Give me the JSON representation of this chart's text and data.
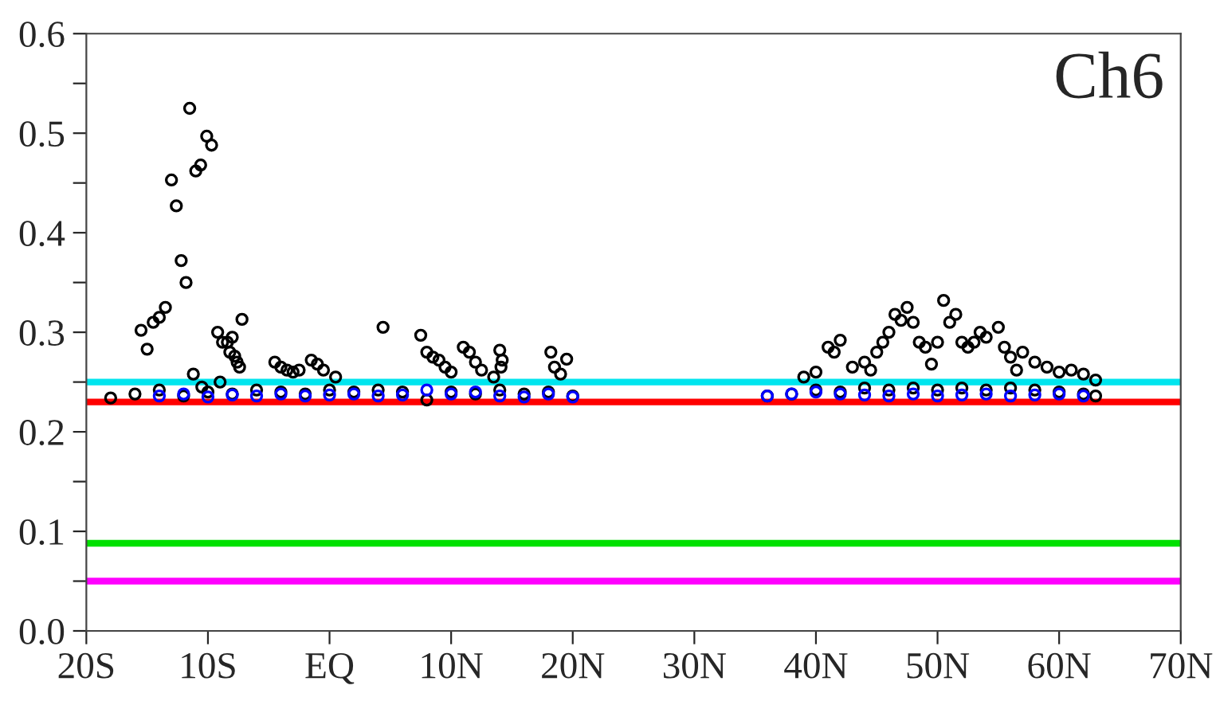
{
  "chart_data": {
    "type": "scatter",
    "marker": "circle",
    "grid": false,
    "legend": false,
    "annotations": [
      "Ch6"
    ],
    "xlim": [
      -20,
      70
    ],
    "xticks": [
      {
        "value": -20,
        "label": "20S"
      },
      {
        "value": -10,
        "label": "10S"
      },
      {
        "value": 0,
        "label": "EQ"
      },
      {
        "value": 10,
        "label": "10N"
      },
      {
        "value": 20,
        "label": "20N"
      },
      {
        "value": 30,
        "label": "30N"
      },
      {
        "value": 40,
        "label": "40N"
      },
      {
        "value": 50,
        "label": "50N"
      },
      {
        "value": 60,
        "label": "60N"
      },
      {
        "value": 70,
        "label": "70N"
      }
    ],
    "ylim": [
      0,
      0.6
    ],
    "yticks": [
      {
        "value": 0,
        "label": "0.0"
      },
      {
        "value": 0.05,
        "label": null
      },
      {
        "value": 0.1,
        "label": "0.1"
      },
      {
        "value": 0.15,
        "label": null
      },
      {
        "value": 0.2,
        "label": "0.2"
      },
      {
        "value": 0.25,
        "label": null
      },
      {
        "value": 0.3,
        "label": "0.3"
      },
      {
        "value": 0.35,
        "label": null
      },
      {
        "value": 0.4,
        "label": "0.4"
      },
      {
        "value": 0.45,
        "label": null
      },
      {
        "value": 0.5,
        "label": "0.5"
      },
      {
        "value": 0.55,
        "label": null
      },
      {
        "value": 0.6,
        "label": "0.6"
      }
    ],
    "ref_lines": [
      {
        "axis": "y",
        "value": 0.25,
        "color": "#00e5ee"
      },
      {
        "axis": "y",
        "value": 0.23,
        "color": "#ff0000"
      },
      {
        "axis": "y",
        "value": 0.088,
        "color": "#00e000"
      },
      {
        "axis": "y",
        "value": 0.05,
        "color": "#ff00ff"
      }
    ],
    "series": [
      {
        "color": "#000000",
        "x": [
          -15.5,
          -15,
          -14.5,
          -14,
          -13.5,
          -13,
          -12.6,
          -12.2,
          -11.8,
          -11.5,
          -11,
          -10.6,
          -10.1,
          -9.7,
          -11.2,
          -10.5,
          -9.2,
          -8.8,
          -8.4,
          -8.2,
          -7.8,
          -7.6,
          -7.2,
          -8,
          -7.4,
          -9,
          -4.5,
          -4,
          -3.5,
          -3,
          -2.5,
          -1.5,
          -1,
          -0.5,
          0.5,
          4.4,
          7.5,
          8,
          8.5,
          9,
          9.5,
          10,
          11,
          11.5,
          12,
          12.5,
          13.5,
          14,
          14.2,
          14.1,
          18.2,
          18.5,
          19.5,
          19,
          40,
          41,
          42,
          41.5,
          43,
          44,
          45,
          45.5,
          46,
          46.5,
          47,
          47.5,
          48,
          48.5,
          49,
          50,
          50.5,
          51,
          51.5,
          52,
          52.5,
          53,
          53.5,
          54,
          55,
          55.5,
          56,
          57,
          58,
          59,
          60,
          61,
          62,
          63,
          39,
          44.5,
          49.5,
          56.5,
          -18,
          -16,
          -14,
          -12,
          -10,
          -8,
          -6,
          -4,
          -2,
          0,
          2,
          4,
          6,
          8,
          10,
          12,
          14,
          16,
          18,
          20,
          36,
          38,
          40,
          42,
          44,
          46,
          48,
          50,
          52,
          54,
          56,
          58,
          60,
          62,
          63
        ],
        "values": [
          0.302,
          0.283,
          0.31,
          0.315,
          0.325,
          0.453,
          0.427,
          0.372,
          0.35,
          0.525,
          0.462,
          0.468,
          0.497,
          0.488,
          0.258,
          0.245,
          0.3,
          0.29,
          0.29,
          0.28,
          0.276,
          0.27,
          0.313,
          0.295,
          0.265,
          0.25,
          0.27,
          0.265,
          0.262,
          0.26,
          0.262,
          0.272,
          0.268,
          0.262,
          0.255,
          0.305,
          0.297,
          0.28,
          0.275,
          0.272,
          0.265,
          0.26,
          0.285,
          0.28,
          0.27,
          0.262,
          0.255,
          0.282,
          0.272,
          0.265,
          0.28,
          0.265,
          0.273,
          0.258,
          0.26,
          0.285,
          0.292,
          0.28,
          0.265,
          0.27,
          0.28,
          0.29,
          0.3,
          0.318,
          0.312,
          0.325,
          0.31,
          0.29,
          0.285,
          0.29,
          0.332,
          0.31,
          0.318,
          0.29,
          0.285,
          0.29,
          0.3,
          0.295,
          0.305,
          0.285,
          0.275,
          0.28,
          0.27,
          0.265,
          0.26,
          0.262,
          0.258,
          0.252,
          0.255,
          0.262,
          0.268,
          0.262,
          0.234,
          0.238,
          0.242,
          0.236,
          0.24,
          0.238,
          0.242,
          0.24,
          0.238,
          0.242,
          0.24,
          0.242,
          0.24,
          0.232,
          0.24,
          0.238,
          0.242,
          0.238,
          0.24,
          0.236,
          0.236,
          0.238,
          0.242,
          0.24,
          0.244,
          0.242,
          0.244,
          0.242,
          0.244,
          0.242,
          0.244,
          0.242,
          0.24,
          0.238,
          0.236
        ]
      },
      {
        "color": "#0000ff",
        "x": [
          -14,
          -12,
          -10,
          -8,
          -6,
          -4,
          -2,
          0,
          2,
          4,
          6,
          8,
          10,
          12,
          14,
          16,
          18,
          20,
          36,
          38,
          40,
          42,
          44,
          46,
          48,
          50,
          52,
          54,
          56,
          58,
          60,
          62
        ],
        "values": [
          0.236,
          0.238,
          0.235,
          0.237,
          0.236,
          0.238,
          0.236,
          0.237,
          0.238,
          0.236,
          0.237,
          0.242,
          0.238,
          0.24,
          0.236,
          0.235,
          0.238,
          0.235,
          0.236,
          0.238,
          0.24,
          0.238,
          0.237,
          0.236,
          0.238,
          0.236,
          0.237,
          0.238,
          0.236,
          0.237,
          0.238,
          0.236
        ]
      }
    ]
  }
}
